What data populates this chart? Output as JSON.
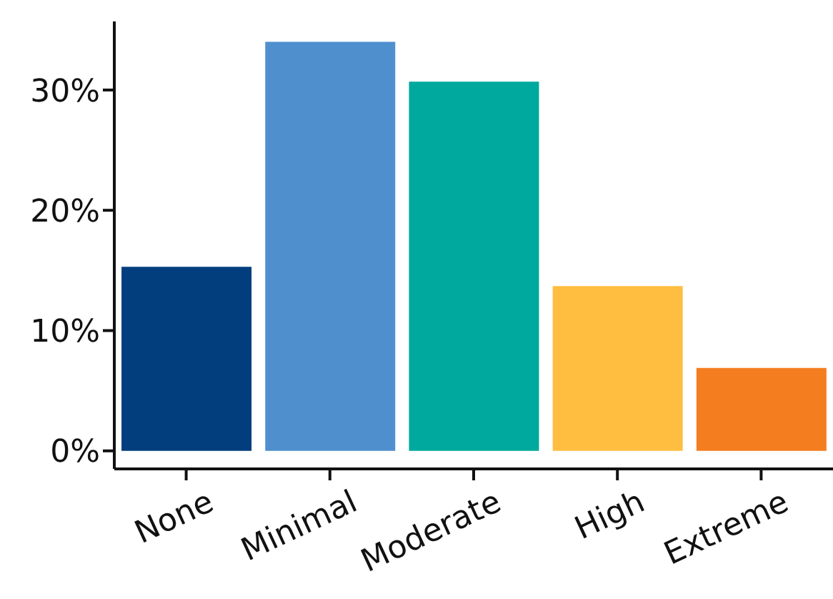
{
  "chart_data": {
    "type": "bar",
    "categories": [
      "None",
      "Minimal",
      "Moderate",
      "High",
      "Extreme"
    ],
    "values": [
      15.3,
      34.0,
      30.7,
      13.7,
      6.9
    ],
    "colors": [
      "#023e7d",
      "#4f8fce",
      "#00a99d",
      "#ffbe40",
      "#f47d20"
    ],
    "ylim": [
      -1.5,
      35.7
    ],
    "yticks": [
      {
        "value": 0,
        "label": "0%"
      },
      {
        "value": 10,
        "label": "10%"
      },
      {
        "value": 20,
        "label": "20%"
      },
      {
        "value": 30,
        "label": "30%"
      }
    ],
    "grid": false,
    "legend": false
  }
}
